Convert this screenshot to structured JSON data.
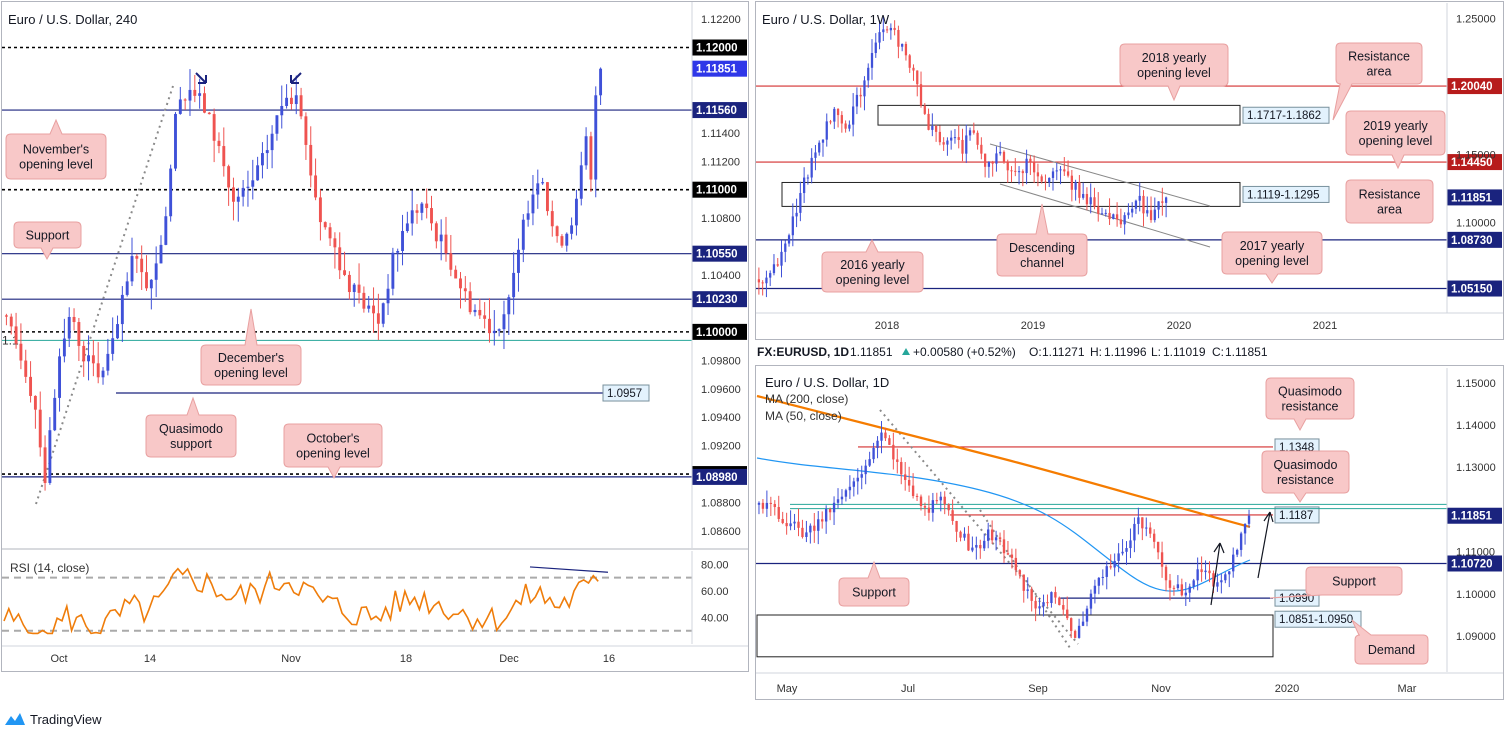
{
  "chart_data": [
    {
      "id": "h4",
      "type": "candlestick",
      "title": "Euro / U.S. Dollar, 240",
      "ylim": [
        1.0848,
        1.1232
      ],
      "x_ticks": [
        "Oct",
        "14",
        "Nov",
        "18",
        "Dec",
        "16"
      ],
      "y_ticks": [
        "1.12200",
        "1.11400",
        "1.11200",
        "1.10800",
        "1.10400",
        "1.09800",
        "1.09600",
        "1.09400",
        "1.09200",
        "1.08800",
        "1.08600"
      ],
      "levels": [
        {
          "value": 1.12,
          "label": "1.12000",
          "style": "dotted",
          "bg": "#000000"
        },
        {
          "value": 1.11851,
          "label": "1.11851",
          "style": "none",
          "bg": "#2f37e8"
        },
        {
          "value": 1.1156,
          "label": "1.11560",
          "style": "solid",
          "bg": "#1a237e"
        },
        {
          "value": 1.11,
          "label": "1.11000",
          "style": "dotted",
          "bg": "#000000"
        },
        {
          "value": 1.1055,
          "label": "1.10550",
          "style": "solid",
          "bg": "#1a237e"
        },
        {
          "value": 1.1023,
          "label": "1.10230",
          "style": "solid",
          "bg": "#1a237e"
        },
        {
          "value": 1.1,
          "label": "1.10000",
          "style": "dotted",
          "bg": "#000000"
        },
        {
          "value": 1.0957,
          "label": "1.0957",
          "style": "solid",
          "tag": true
        },
        {
          "value": 1.09,
          "label": "1.09000",
          "style": "dotted",
          "bg": "#000000"
        },
        {
          "value": 1.0898,
          "label": "1.08980",
          "style": "solid",
          "bg": "#1a237e"
        }
      ],
      "annotations": [
        {
          "lines": [
            "November's",
            "opening level"
          ]
        },
        {
          "lines": [
            "Support"
          ]
        },
        {
          "lines": [
            "December's",
            "opening level"
          ]
        },
        {
          "lines": [
            "Quasimodo",
            "support"
          ]
        },
        {
          "lines": [
            "October's",
            "opening level"
          ]
        }
      ],
      "rsi": {
        "title": "RSI (14, close)",
        "ticks": [
          "80.00",
          "60.00",
          "40.00"
        ],
        "ylim": [
          20,
          90
        ],
        "bands": [
          70,
          30
        ]
      },
      "green_label": "1.1",
      "path": [
        [
          0,
          1.1005
        ],
        [
          3,
          1.0985
        ],
        [
          6,
          1.0948
        ],
        [
          8,
          1.0898
        ],
        [
          10,
          1.0958
        ],
        [
          13,
          1.1012
        ],
        [
          16,
          1.0985
        ],
        [
          19,
          1.0968
        ],
        [
          22,
          1.099
        ],
        [
          26,
          1.105
        ],
        [
          30,
          1.103
        ],
        [
          33,
          1.1085
        ],
        [
          35,
          1.115
        ],
        [
          38,
          1.1172
        ],
        [
          41,
          1.1158
        ],
        [
          44,
          1.113
        ],
        [
          47,
          1.109
        ],
        [
          50,
          1.11
        ],
        [
          53,
          1.112
        ],
        [
          56,
          1.115
        ],
        [
          58,
          1.117
        ],
        [
          60,
          1.116
        ],
        [
          62,
          1.113
        ],
        [
          65,
          1.108
        ],
        [
          68,
          1.106
        ],
        [
          71,
          1.103
        ],
        [
          74,
          1.102
        ],
        [
          77,
          1.1008
        ],
        [
          80,
          1.105
        ],
        [
          83,
          1.108
        ],
        [
          86,
          1.109
        ],
        [
          89,
          1.107
        ],
        [
          92,
          1.105
        ],
        [
          95,
          1.1025
        ],
        [
          98,
          1.1012
        ],
        [
          101,
          1.1002
        ],
        [
          104,
          1.102
        ],
        [
          106,
          1.1055
        ],
        [
          108,
          1.109
        ],
        [
          110,
          1.111
        ],
        [
          112,
          1.1088
        ],
        [
          114,
          1.1062
        ],
        [
          116,
          1.1072
        ],
        [
          118,
          1.109
        ],
        [
          120,
          1.1135
        ],
        [
          121,
          1.1104
        ],
        [
          122,
          1.1168
        ],
        [
          123,
          1.11851
        ]
      ]
    },
    {
      "id": "weekly",
      "type": "candlestick",
      "title": "Euro / U.S. Dollar, 1W",
      "ylim": [
        1.0335,
        1.2615
      ],
      "x_ticks": [
        "2018",
        "2019",
        "2020",
        "2021"
      ],
      "y_ticks": [
        "1.25000",
        "1.15000",
        "1.10000"
      ],
      "levels": [
        {
          "value": 1.2004,
          "label": "1.20040",
          "style": "red",
          "bg": "#b71c1c"
        },
        {
          "value": 1.1445,
          "label": "1.14450",
          "style": "red",
          "bg": "#b71c1c"
        },
        {
          "value": 1.11851,
          "label": "1.11851",
          "style": "none",
          "bg": "#1a237e"
        },
        {
          "value": 1.0873,
          "label": "1.08730",
          "style": "solid",
          "bg": "#1a237e"
        },
        {
          "value": 1.0515,
          "label": "1.05150",
          "style": "solid",
          "bg": "#1a237e"
        }
      ],
      "zones": [
        {
          "label": "1.1717-1.1862",
          "low": 1.1717,
          "high": 1.1862
        },
        {
          "label": "1.1119-1.1295",
          "low": 1.1119,
          "high": 1.1295
        }
      ],
      "annotations": [
        {
          "lines": [
            "2018 yearly",
            "opening level"
          ]
        },
        {
          "lines": [
            "Resistance",
            "area"
          ]
        },
        {
          "lines": [
            "2019 yearly",
            "opening level"
          ]
        },
        {
          "lines": [
            "Resistance",
            "area"
          ]
        },
        {
          "lines": [
            "Descending",
            "channel"
          ]
        },
        {
          "lines": [
            "2016 yearly",
            "opening level"
          ]
        },
        {
          "lines": [
            "2017 yearly",
            "opening level"
          ]
        }
      ],
      "path": [
        [
          0,
          1.058
        ],
        [
          4,
          1.065
        ],
        [
          8,
          1.09
        ],
        [
          12,
          1.13
        ],
        [
          16,
          1.16
        ],
        [
          20,
          1.18
        ],
        [
          23,
          1.17
        ],
        [
          26,
          1.19
        ],
        [
          30,
          1.22
        ],
        [
          33,
          1.245
        ],
        [
          36,
          1.238
        ],
        [
          39,
          1.225
        ],
        [
          42,
          1.2
        ],
        [
          45,
          1.17
        ],
        [
          48,
          1.16
        ],
        [
          51,
          1.165
        ],
        [
          54,
          1.155
        ],
        [
          57,
          1.17
        ],
        [
          60,
          1.14
        ],
        [
          64,
          1.15
        ],
        [
          68,
          1.135
        ],
        [
          72,
          1.145
        ],
        [
          76,
          1.13
        ],
        [
          80,
          1.14
        ],
        [
          84,
          1.125
        ],
        [
          88,
          1.115
        ],
        [
          92,
          1.105
        ],
        [
          95,
          1.1
        ],
        [
          98,
          1.105
        ],
        [
          101,
          1.115
        ],
        [
          104,
          1.1
        ],
        [
          107,
          1.118
        ],
        [
          108,
          1.11851
        ]
      ]
    },
    {
      "id": "daily",
      "type": "candlestick",
      "title": "Euro / U.S. Dollar, 1D",
      "header": {
        "symbol": "FX:EURUSD, 1D",
        "last": "1.11851",
        "change": "+0.00580 (+0.52%)",
        "o": "1.11271",
        "h": "1.11996",
        "l": "1.11019",
        "c": "1.11851"
      },
      "legend": [
        "MA (200, close)",
        "MA (50, close)"
      ],
      "ylim": [
        1.0815,
        1.1535
      ],
      "x_ticks": [
        "May",
        "Jul",
        "Sep",
        "Nov",
        "2020",
        "Mar"
      ],
      "y_ticks": [
        "1.15000",
        "1.14000",
        "1.13000",
        "1.11000",
        "1.10000",
        "1.09000"
      ],
      "levels": [
        {
          "value": 1.1348,
          "label": "1.1348",
          "style": "red",
          "tag": true
        },
        {
          "value": 1.1187,
          "label": "1.1187",
          "style": "red",
          "tag": true
        },
        {
          "value": 1.11851,
          "label": "1.11851",
          "style": "none",
          "bg": "#1a237e"
        },
        {
          "value": 1.1072,
          "label": "1.10720",
          "style": "solid",
          "bg": "#1a237e"
        },
        {
          "value": 1.099,
          "label": "1.0990",
          "style": "solid",
          "tag": true
        }
      ],
      "zones": [
        {
          "label": "1.0851-1.0950",
          "low": 1.0851,
          "high": 1.095
        }
      ],
      "annotations": [
        {
          "lines": [
            "Quasimodo",
            "resistance"
          ]
        },
        {
          "lines": [
            "Quasimodo",
            "resistance"
          ]
        },
        {
          "lines": [
            "Support"
          ]
        },
        {
          "lines": [
            "Support"
          ]
        },
        {
          "lines": [
            "Demand"
          ]
        }
      ],
      "path": [
        [
          0,
          1.122
        ],
        [
          6,
          1.118
        ],
        [
          12,
          1.114
        ],
        [
          18,
          1.12
        ],
        [
          24,
          1.126
        ],
        [
          28,
          1.133
        ],
        [
          31,
          1.1395
        ],
        [
          34,
          1.132
        ],
        [
          38,
          1.125
        ],
        [
          42,
          1.12
        ],
        [
          46,
          1.122
        ],
        [
          50,
          1.116
        ],
        [
          54,
          1.11
        ],
        [
          58,
          1.114
        ],
        [
          62,
          1.111
        ],
        [
          66,
          1.104
        ],
        [
          70,
          1.096
        ],
        [
          74,
          1.1
        ],
        [
          78,
          1.095
        ],
        [
          80,
          1.09
        ],
        [
          84,
          1.099
        ],
        [
          88,
          1.106
        ],
        [
          92,
          1.11
        ],
        [
          96,
          1.117
        ],
        [
          100,
          1.112
        ],
        [
          104,
          1.102
        ],
        [
          108,
          1.1
        ],
        [
          112,
          1.106
        ],
        [
          116,
          1.102
        ],
        [
          120,
          1.108
        ],
        [
          124,
          1.11851
        ]
      ]
    }
  ]
}
